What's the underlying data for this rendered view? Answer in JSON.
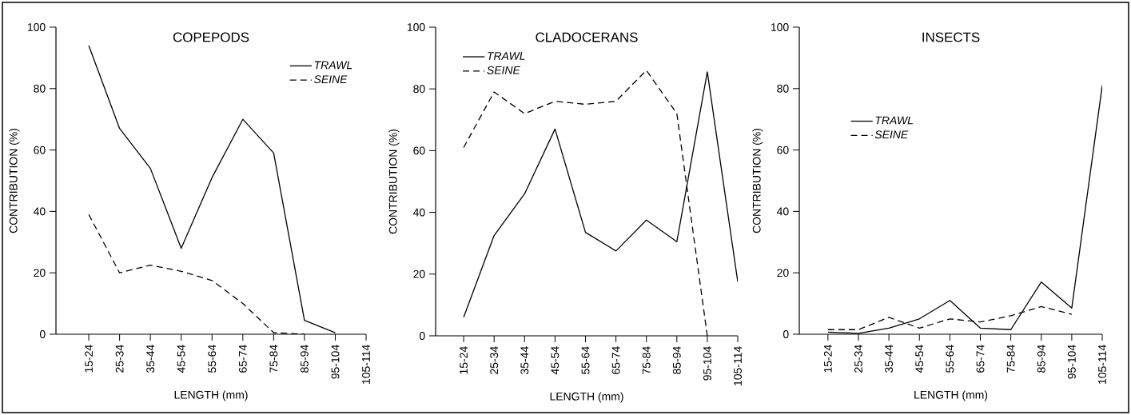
{
  "chart_data": [
    {
      "type": "line",
      "title": "COPEPODS",
      "xlabel": "LENGTH (mm)",
      "ylabel": "CONTRIBUTION (%)",
      "categories": [
        "15-24",
        "25-34",
        "35-44",
        "45-54",
        "55-64",
        "65-74",
        "75-84",
        "85-94",
        "95-104",
        "105-114"
      ],
      "ylim": [
        0,
        100
      ],
      "yticks": [
        0,
        20,
        40,
        60,
        80,
        100
      ],
      "legend": "top right",
      "series": [
        {
          "name": "TRAWL",
          "color": "#000000",
          "line_style": "solid",
          "values": [
            94,
            67,
            54,
            28,
            51,
            70,
            59,
            4.5,
            0.5,
            null
          ]
        },
        {
          "name": "SEINE",
          "color": "#000000",
          "line_style": "dashed",
          "values": [
            39,
            20,
            22.5,
            20.5,
            17.5,
            10,
            0.5,
            0,
            null,
            null
          ]
        }
      ]
    },
    {
      "type": "line",
      "title": "CLADOCERANS",
      "xlabel": "LENGTH (mm)",
      "ylabel": "CONTRIBUTION (%)",
      "categories": [
        "15-24",
        "25-34",
        "35-44",
        "45-54",
        "55-64",
        "65-74",
        "75-84",
        "85-94",
        "95-104",
        "105-114"
      ],
      "ylim": [
        0,
        100
      ],
      "yticks": [
        0,
        20,
        40,
        60,
        80,
        100
      ],
      "legend": "top left",
      "series": [
        {
          "name": "TRAWL",
          "color": "#000000",
          "line_style": "solid",
          "values": [
            6,
            32.5,
            46,
            67,
            33.5,
            27.5,
            37.5,
            30.5,
            85.5,
            17.5
          ]
        },
        {
          "name": "SEINE",
          "color": "#000000",
          "line_style": "dashed",
          "values": [
            61,
            79,
            72,
            76,
            75,
            76,
            86,
            72,
            0,
            null
          ]
        }
      ]
    },
    {
      "type": "line",
      "title": "INSECTS",
      "xlabel": "LENGTH (mm)",
      "ylabel": "CONTRIBUTION (%)",
      "categories": [
        "15-24",
        "25-34",
        "35-44",
        "45-54",
        "55-64",
        "65-74",
        "75-84",
        "85-94",
        "95-104",
        "105-114"
      ],
      "ylim": [
        0,
        100
      ],
      "yticks": [
        0,
        20,
        40,
        60,
        80,
        100
      ],
      "legend": "left",
      "series": [
        {
          "name": "TRAWL",
          "color": "#000000",
          "line_style": "solid",
          "values": [
            0.7,
            0.3,
            2,
            5,
            11,
            2,
            1.5,
            17,
            8.5,
            81
          ]
        },
        {
          "name": "SEINE",
          "color": "#000000",
          "line_style": "dashed",
          "values": [
            1.5,
            1.5,
            5.5,
            2,
            5,
            4,
            6,
            9,
            6.5,
            null
          ]
        }
      ]
    }
  ]
}
